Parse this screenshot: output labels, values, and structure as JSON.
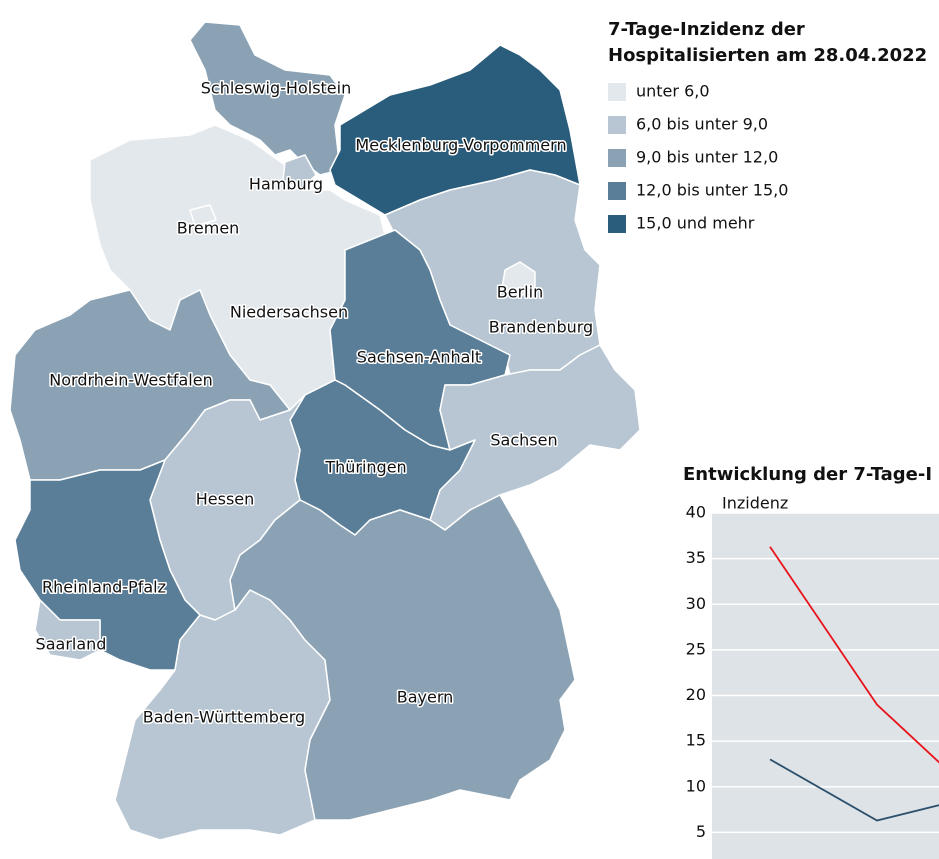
{
  "map": {
    "title_line1": "7-Tage-Inzidenz der",
    "title_line2": "Hospitalisierten am 28.04.2022",
    "legend": [
      {
        "label": "unter 6,0",
        "color": "#e3e8ec"
      },
      {
        "label": "6,0 bis unter 9,0",
        "color": "#b7c6d2"
      },
      {
        "label": "9,0 bis unter 12,0",
        "color": "#8aa2b4"
      },
      {
        "label": "12,0 bis unter 15,0",
        "color": "#5a7e98"
      },
      {
        "label": "15,0 und mehr",
        "color": "#2a5c7c"
      }
    ],
    "states": [
      {
        "name": "Schleswig-Holstein",
        "color": "#8aa2b4"
      },
      {
        "name": "Mecklenburg-Vorpommern",
        "color": "#2a5c7c"
      },
      {
        "name": "Niedersachsen",
        "color": "#e3e8ec"
      },
      {
        "name": "Hamburg",
        "color": "#b7c6d2"
      },
      {
        "name": "Bremen",
        "color": "#e3e8ec"
      },
      {
        "name": "Brandenburg",
        "color": "#b7c6d2"
      },
      {
        "name": "Berlin",
        "color": "#e3e8ec"
      },
      {
        "name": "Sachsen-Anhalt",
        "color": "#5a7e98"
      },
      {
        "name": "Sachsen",
        "color": "#b7c6d2"
      },
      {
        "name": "Thüringen",
        "color": "#5a7e98"
      },
      {
        "name": "Nordrhein-Westfalen",
        "color": "#8aa2b4"
      },
      {
        "name": "Hessen",
        "color": "#b7c6d2"
      },
      {
        "name": "Rheinland-Pfalz",
        "color": "#5a7e98"
      },
      {
        "name": "Saarland",
        "color": "#b7c6d2"
      },
      {
        "name": "Baden-Württemberg",
        "color": "#b7c6d2"
      },
      {
        "name": "Bayern",
        "color": "#8aa2b4"
      }
    ]
  },
  "chart_data": {
    "type": "line",
    "title": "Entwicklung der 7-Tage-I",
    "y_label": "Inzidenz",
    "categories": [
      null,
      null,
      null
    ],
    "series": [
      {
        "color": "#e8141b",
        "values": [
          36.3,
          19,
          8.1
        ]
      },
      {
        "color": "#2c4f6b",
        "values": [
          13,
          6.3,
          9.2
        ]
      }
    ],
    "ylim": [
      0,
      40
    ],
    "yticks": [
      5,
      10,
      15,
      20,
      25,
      30,
      35,
      40
    ],
    "grid": true
  }
}
